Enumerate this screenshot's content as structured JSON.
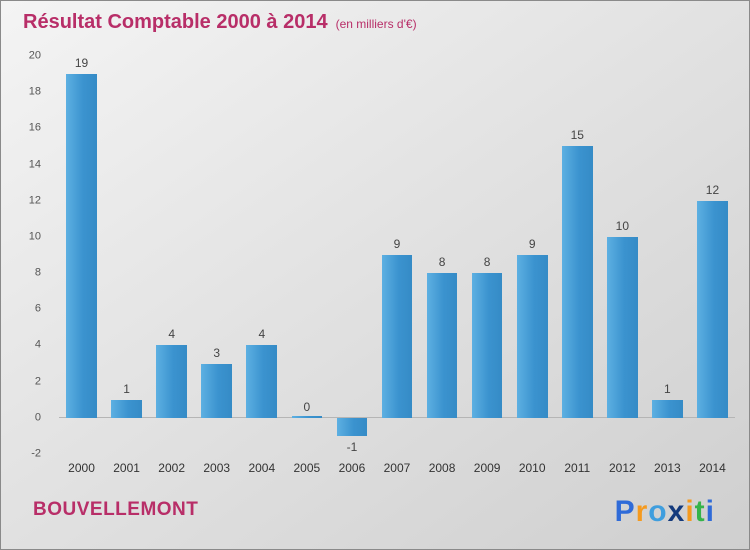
{
  "header": {
    "title": "Résultat Comptable 2000 à 2014",
    "subtitle": "(en milliers d'€)",
    "title_color": "#b82e68"
  },
  "footer": {
    "company": "BOUVELLEMONT",
    "company_color": "#b82e68",
    "logo_letters": [
      {
        "char": "P",
        "color": "#2f6bd8"
      },
      {
        "char": "r",
        "color": "#f59a1e"
      },
      {
        "char": "o",
        "color": "#3f9ede"
      },
      {
        "char": "x",
        "color": "#143a7c"
      },
      {
        "char": "i",
        "color": "#f59a1e"
      },
      {
        "char": "t",
        "color": "#35b44a"
      },
      {
        "char": "i",
        "color": "#2f6bd8"
      }
    ]
  },
  "chart_data": {
    "type": "bar",
    "title": "Résultat Comptable 2000 à 2014",
    "subtitle": "(en milliers d'€)",
    "categories": [
      "2000",
      "2001",
      "2002",
      "2003",
      "2004",
      "2005",
      "2006",
      "2007",
      "2008",
      "2009",
      "2010",
      "2011",
      "2012",
      "2013",
      "2014"
    ],
    "values": [
      19,
      1,
      4,
      3,
      4,
      0,
      -1,
      9,
      8,
      8,
      9,
      15,
      10,
      1,
      12
    ],
    "ylim": [
      -2,
      20
    ],
    "ytick_step": 2,
    "grid": false,
    "legend": "none",
    "bar_color": "#3b93cf",
    "value_label_color": "#444444",
    "xlabel": "",
    "ylabel": ""
  }
}
